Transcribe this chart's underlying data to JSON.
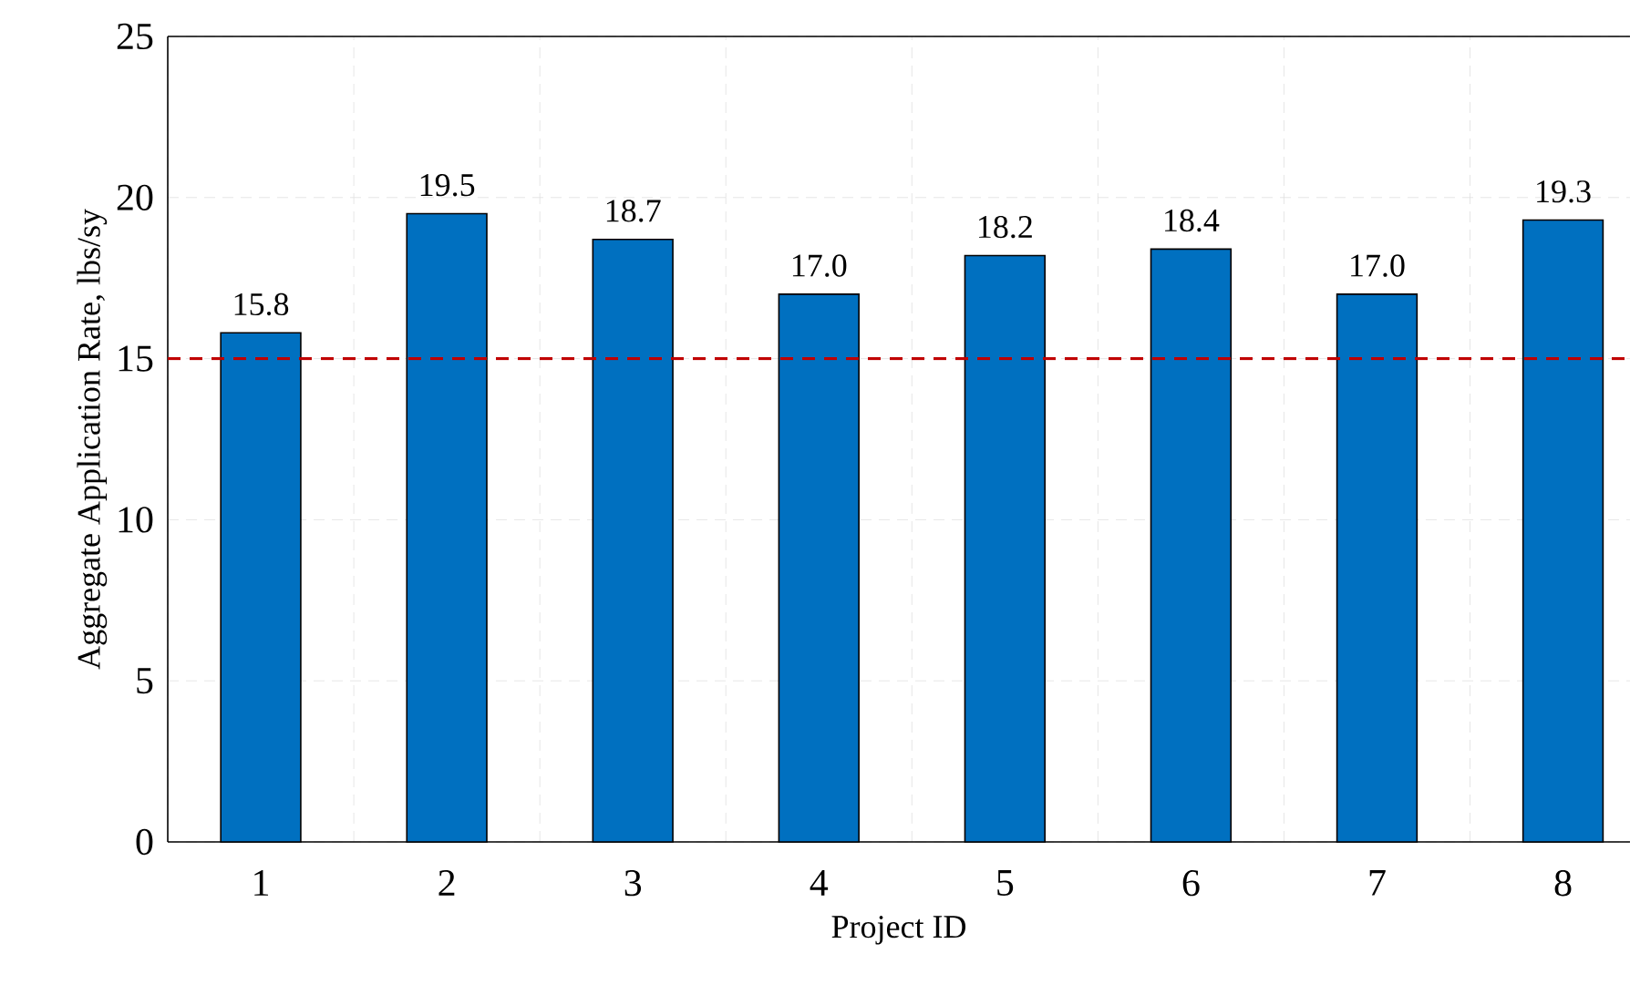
{
  "chart_data": {
    "type": "bar",
    "xlabel": "Project ID",
    "ylabel": "Aggregate Application Rate, lbs/sy",
    "categories": [
      "1",
      "2",
      "3",
      "4",
      "5",
      "6",
      "7",
      "8"
    ],
    "values": [
      15.8,
      19.5,
      18.7,
      17.0,
      18.2,
      18.4,
      17.0,
      19.3
    ],
    "value_labels": [
      "15.8",
      "19.5",
      "18.7",
      "17.0",
      "18.2",
      "18.4",
      "17.0",
      "19.3"
    ],
    "color": "#0070c0",
    "ylim": [
      0,
      25
    ],
    "yticks": [
      0,
      5,
      10,
      15,
      20,
      25
    ],
    "grid": true,
    "ref_lines": [
      {
        "axis": "y",
        "value": 15,
        "color": "#c00000",
        "line_style": "dashed"
      }
    ]
  }
}
